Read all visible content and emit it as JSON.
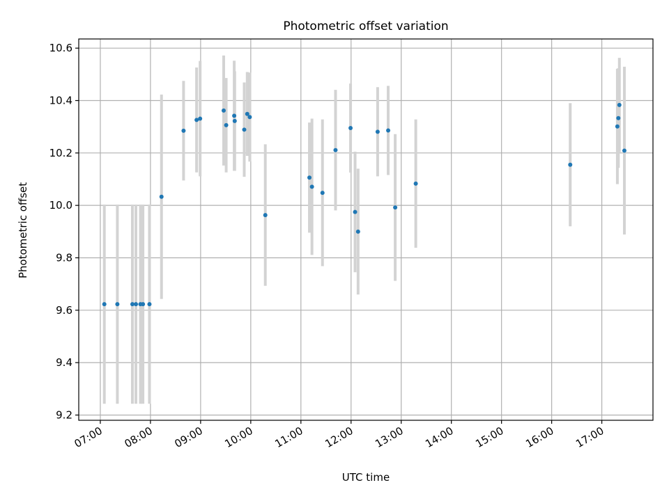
{
  "chart_data": {
    "type": "scatter",
    "title": "Photometric offset variation",
    "xlabel": "UTC time",
    "ylabel": "Photometric offset",
    "x_unit": "hours UTC",
    "xlim": [
      6.57,
      18.02
    ],
    "ylim": [
      9.18,
      10.635
    ],
    "x_ticks": [
      {
        "value": 7,
        "label": "07:00"
      },
      {
        "value": 8,
        "label": "08:00"
      },
      {
        "value": 9,
        "label": "09:00"
      },
      {
        "value": 10,
        "label": "10:00"
      },
      {
        "value": 11,
        "label": "11:00"
      },
      {
        "value": 12,
        "label": "12:00"
      },
      {
        "value": 13,
        "label": "13:00"
      },
      {
        "value": 14,
        "label": "14:00"
      },
      {
        "value": 15,
        "label": "15:00"
      },
      {
        "value": 16,
        "label": "16:00"
      },
      {
        "value": 17,
        "label": "17:00"
      }
    ],
    "y_ticks": [
      {
        "value": 9.2,
        "label": "9.2"
      },
      {
        "value": 9.4,
        "label": "9.4"
      },
      {
        "value": 9.6,
        "label": "9.6"
      },
      {
        "value": 9.8,
        "label": "9.8"
      },
      {
        "value": 10.0,
        "label": "10.0"
      },
      {
        "value": 10.2,
        "label": "10.2"
      },
      {
        "value": 10.4,
        "label": "10.4"
      },
      {
        "value": 10.6,
        "label": "10.6"
      }
    ],
    "grid": true,
    "point_color": "#1f77b4",
    "errorbar_color": "#d3d3d3",
    "points": [
      {
        "x": 7.08,
        "y": 9.623,
        "err": 0.38
      },
      {
        "x": 7.34,
        "y": 9.623,
        "err": 0.38
      },
      {
        "x": 7.64,
        "y": 9.623,
        "err": 0.38
      },
      {
        "x": 7.71,
        "y": 9.623,
        "err": 0.38
      },
      {
        "x": 7.8,
        "y": 9.623,
        "err": 0.38
      },
      {
        "x": 7.85,
        "y": 9.623,
        "err": 0.38
      },
      {
        "x": 7.98,
        "y": 9.623,
        "err": 0.38
      },
      {
        "x": 8.22,
        "y": 10.033,
        "err": 0.39
      },
      {
        "x": 8.66,
        "y": 10.285,
        "err": 0.19
      },
      {
        "x": 8.92,
        "y": 10.326,
        "err": 0.2
      },
      {
        "x": 8.99,
        "y": 10.331,
        "err": 0.22
      },
      {
        "x": 9.46,
        "y": 10.362,
        "err": 0.21
      },
      {
        "x": 9.51,
        "y": 10.306,
        "err": 0.18
      },
      {
        "x": 9.67,
        "y": 10.342,
        "err": 0.21
      },
      {
        "x": 9.68,
        "y": 10.322,
        "err": 0.19
      },
      {
        "x": 9.87,
        "y": 10.289,
        "err": 0.18
      },
      {
        "x": 9.93,
        "y": 10.349,
        "err": 0.16
      },
      {
        "x": 9.98,
        "y": 10.337,
        "err": 0.17
      },
      {
        "x": 10.29,
        "y": 9.963,
        "err": 0.27
      },
      {
        "x": 11.17,
        "y": 10.106,
        "err": 0.21
      },
      {
        "x": 11.22,
        "y": 10.071,
        "err": 0.26
      },
      {
        "x": 11.43,
        "y": 10.048,
        "err": 0.28
      },
      {
        "x": 11.69,
        "y": 10.211,
        "err": 0.23
      },
      {
        "x": 11.99,
        "y": 10.295,
        "err": 0.17
      },
      {
        "x": 12.08,
        "y": 9.975,
        "err": 0.23
      },
      {
        "x": 12.14,
        "y": 9.9,
        "err": 0.24
      },
      {
        "x": 12.53,
        "y": 10.281,
        "err": 0.17
      },
      {
        "x": 12.74,
        "y": 10.286,
        "err": 0.17
      },
      {
        "x": 12.88,
        "y": 9.992,
        "err": 0.28
      },
      {
        "x": 13.29,
        "y": 10.083,
        "err": 0.245
      },
      {
        "x": 16.37,
        "y": 10.155,
        "err": 0.235
      },
      {
        "x": 17.31,
        "y": 10.301,
        "err": 0.22
      },
      {
        "x": 17.33,
        "y": 10.333,
        "err": 0.19
      },
      {
        "x": 17.35,
        "y": 10.383,
        "err": 0.18
      },
      {
        "x": 17.45,
        "y": 10.209,
        "err": 0.32
      }
    ]
  }
}
